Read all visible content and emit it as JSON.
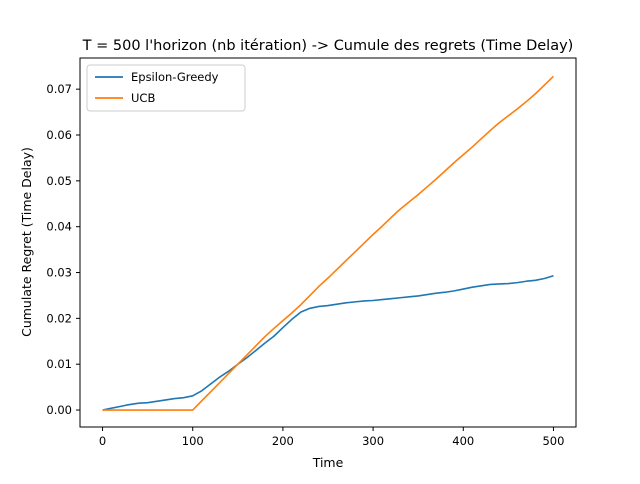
{
  "chart_data": {
    "type": "line",
    "title": "T = 500 l'horizon (nb itération) -> Cumule des regrets (Time Delay)",
    "xlabel": "Time",
    "ylabel": "Cumulate Regret (Time Delay)",
    "xlim": [
      -25,
      525
    ],
    "ylim": [
      -0.0037,
      0.0768
    ],
    "xticks": [
      0,
      100,
      200,
      300,
      400,
      500
    ],
    "xtick_labels": [
      "0",
      "100",
      "200",
      "300",
      "400",
      "500"
    ],
    "yticks": [
      0,
      0.01,
      0.02,
      0.03,
      0.04,
      0.05,
      0.06,
      0.07
    ],
    "ytick_labels": [
      "0.00",
      "0.01",
      "0.02",
      "0.03",
      "0.04",
      "0.05",
      "0.06",
      "0.07"
    ],
    "grid": false,
    "legend_position": "top-left",
    "series": [
      {
        "name": "Epsilon-Greedy",
        "color": "#1f77b4",
        "x": [
          0,
          10,
          20,
          30,
          40,
          50,
          60,
          70,
          80,
          90,
          100,
          110,
          120,
          130,
          140,
          150,
          160,
          170,
          180,
          190,
          200,
          210,
          220,
          230,
          240,
          250,
          260,
          270,
          280,
          290,
          300,
          310,
          320,
          330,
          340,
          350,
          360,
          370,
          380,
          390,
          400,
          410,
          420,
          430,
          440,
          450,
          460,
          470,
          480,
          490,
          500
        ],
        "y": [
          0.0,
          0.0004,
          0.0008,
          0.0012,
          0.0015,
          0.0016,
          0.0019,
          0.0022,
          0.0025,
          0.0027,
          0.0031,
          0.0042,
          0.0057,
          0.0072,
          0.0085,
          0.01,
          0.0114,
          0.013,
          0.0146,
          0.0161,
          0.018,
          0.0198,
          0.0214,
          0.0222,
          0.0226,
          0.0228,
          0.0231,
          0.0234,
          0.0236,
          0.0238,
          0.0239,
          0.0241,
          0.0243,
          0.0245,
          0.0247,
          0.0249,
          0.0252,
          0.0255,
          0.0257,
          0.026,
          0.0264,
          0.0268,
          0.0271,
          0.0274,
          0.0275,
          0.0276,
          0.0278,
          0.0281,
          0.0283,
          0.0287,
          0.0293
        ]
      },
      {
        "name": "UCB",
        "color": "#ff7f0e",
        "x": [
          0,
          10,
          20,
          30,
          40,
          50,
          60,
          70,
          80,
          90,
          100,
          110,
          120,
          130,
          140,
          150,
          160,
          170,
          180,
          190,
          200,
          210,
          220,
          230,
          240,
          250,
          260,
          270,
          280,
          290,
          300,
          310,
          320,
          330,
          340,
          350,
          360,
          370,
          380,
          390,
          400,
          410,
          420,
          430,
          440,
          450,
          460,
          470,
          480,
          490,
          500
        ],
        "y": [
          0.0,
          0.0,
          0.0,
          0.0,
          0.0,
          0.0,
          0.0,
          0.0,
          0.0,
          0.0,
          0.0,
          0.002,
          0.004,
          0.006,
          0.008,
          0.01,
          0.012,
          0.014,
          0.016,
          0.0178,
          0.0195,
          0.0212,
          0.023,
          0.025,
          0.027,
          0.0288,
          0.0307,
          0.0326,
          0.0345,
          0.0364,
          0.0383,
          0.0401,
          0.042,
          0.0438,
          0.0454,
          0.047,
          0.0487,
          0.0504,
          0.0522,
          0.054,
          0.0557,
          0.0574,
          0.0592,
          0.061,
          0.0627,
          0.0642,
          0.0657,
          0.0673,
          0.069,
          0.0709,
          0.0728
        ]
      }
    ]
  }
}
